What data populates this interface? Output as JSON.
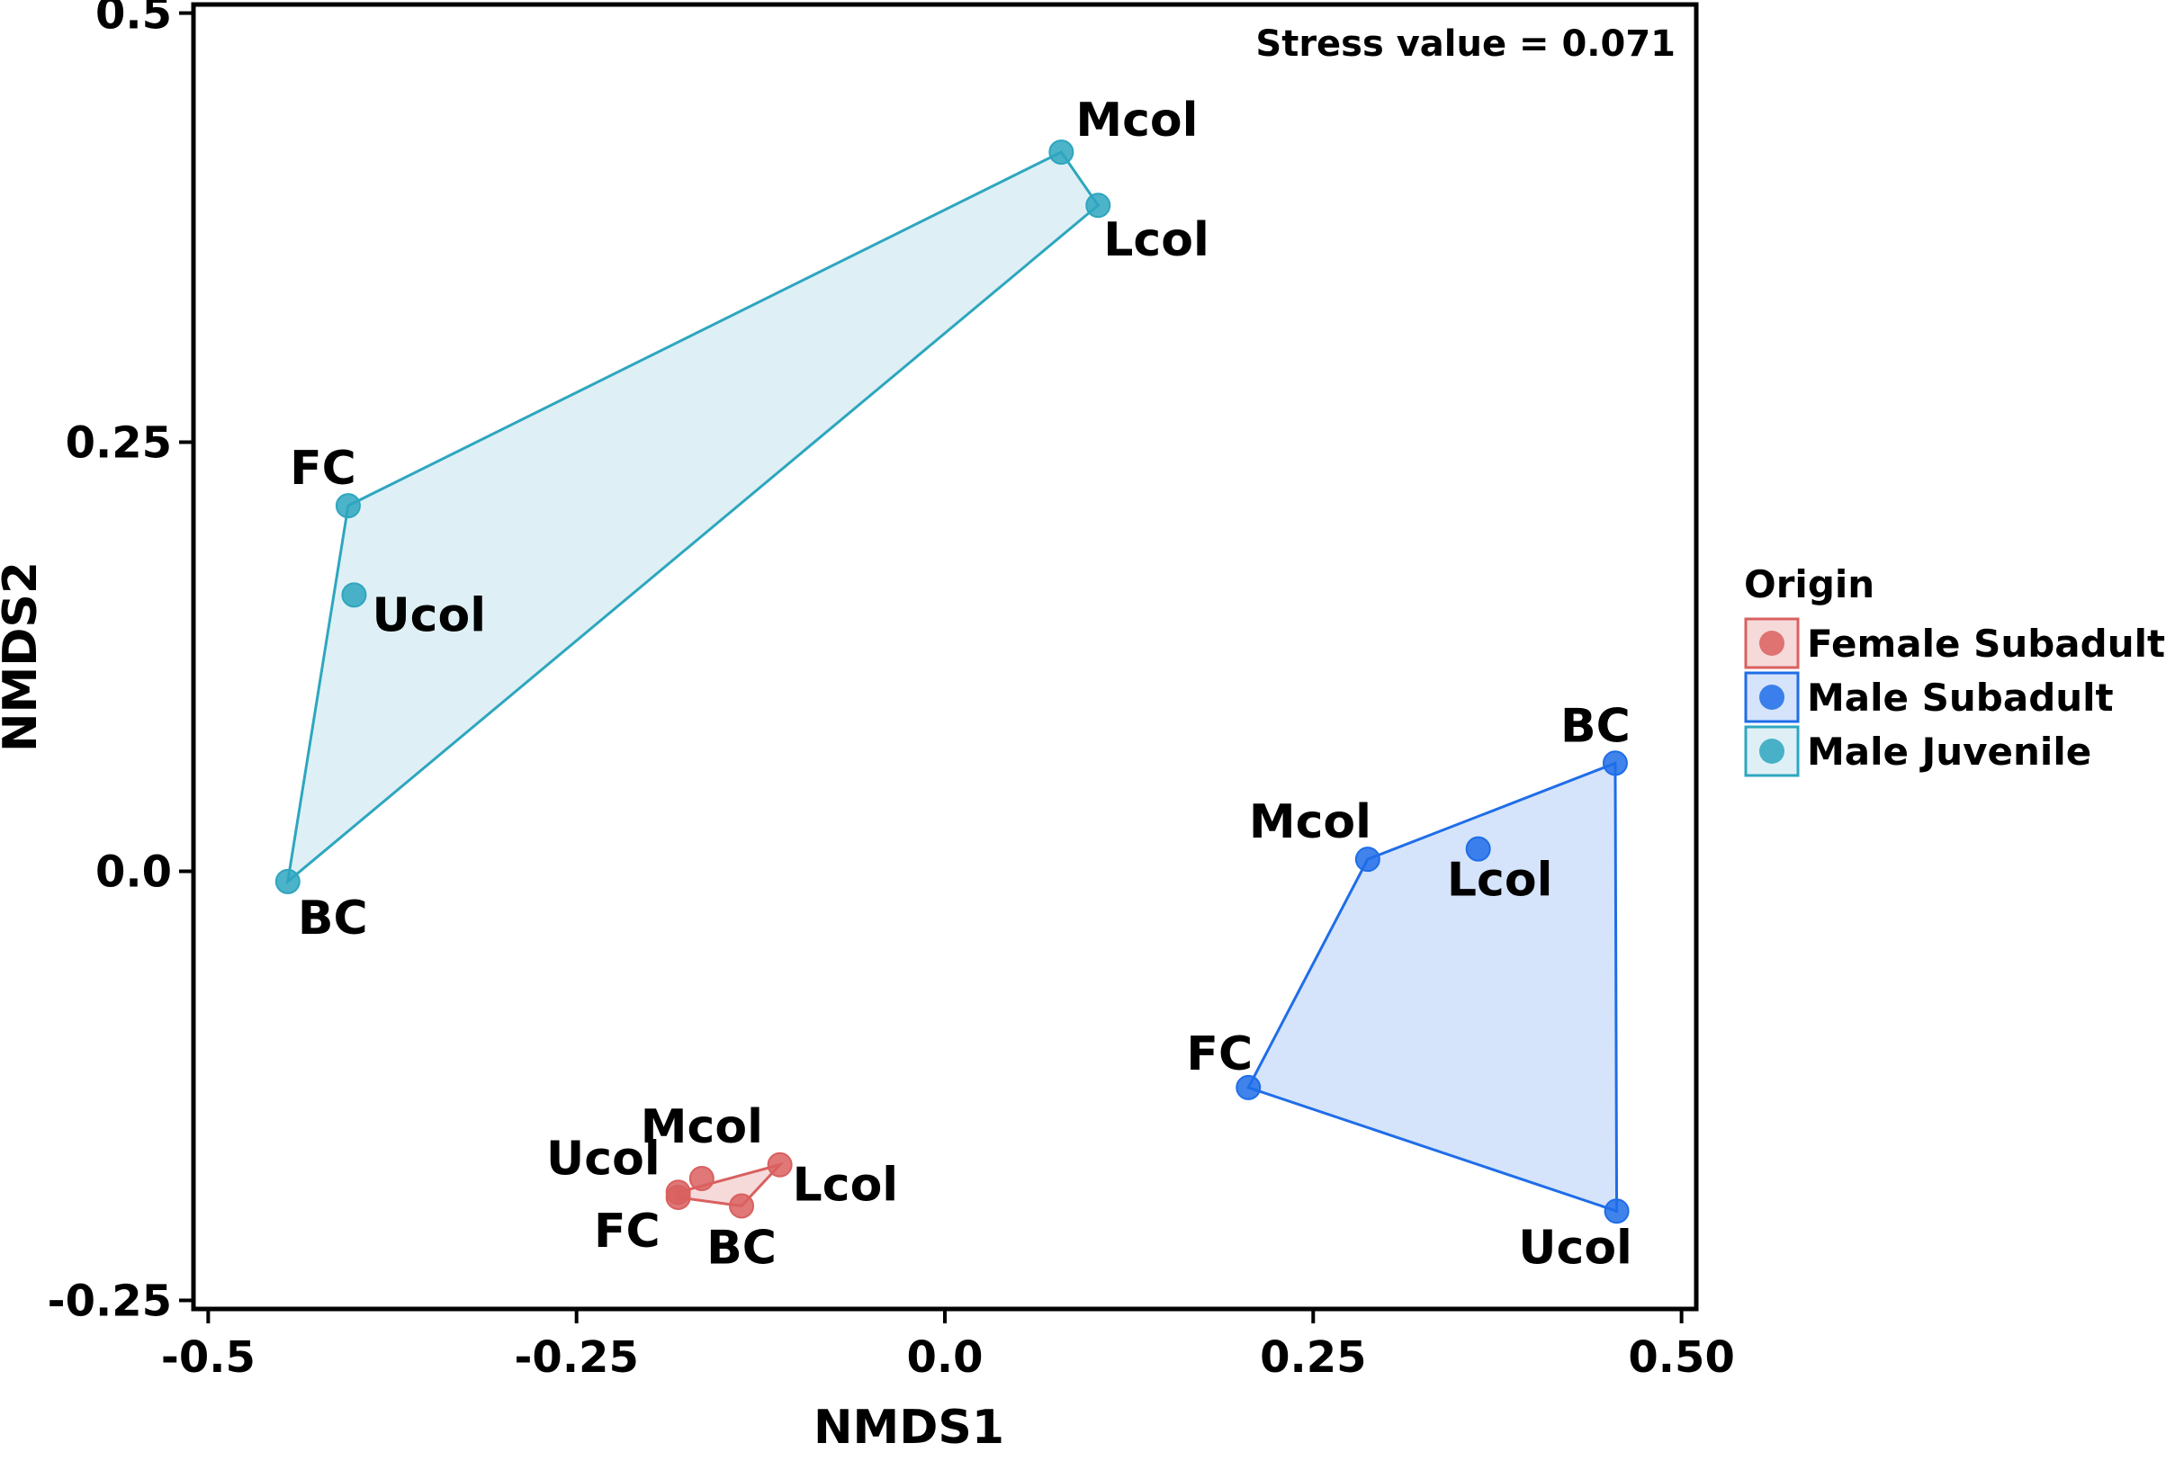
{
  "chart_data": {
    "type": "scatter",
    "xlabel": "NMDS1",
    "ylabel": "NMDS2",
    "xlim": [
      -0.51,
      0.51
    ],
    "ylim": [
      -0.255,
      0.505
    ],
    "x_ticks": [
      -0.5,
      -0.25,
      0.0,
      0.25,
      0.5
    ],
    "x_tick_labels": [
      "-0.5",
      "-0.25",
      "0.0",
      "0.25",
      "0.50"
    ],
    "y_ticks": [
      -0.25,
      0.0,
      0.25,
      0.5
    ],
    "y_tick_labels": [
      "-0.25",
      "0.0",
      "0.25",
      "0.5"
    ],
    "annotation": "Stress value = 0.071",
    "grid": false,
    "legend": {
      "title": "Origin",
      "placement": "right"
    },
    "series": [
      {
        "name": "Female Subadult",
        "color": "#d9605f",
        "fill": "#f6dada",
        "points": [
          {
            "label": "Ucol",
            "x": -0.181,
            "y": -0.187
          },
          {
            "label": "FC",
            "x": -0.181,
            "y": -0.19
          },
          {
            "label": "Mcol",
            "x": -0.165,
            "y": -0.179
          },
          {
            "label": "Lcol",
            "x": -0.112,
            "y": -0.171
          },
          {
            "label": "BC",
            "x": -0.138,
            "y": -0.195
          }
        ],
        "hull": [
          "Ucol",
          "Lcol",
          "BC",
          "FC"
        ]
      },
      {
        "name": "Male Subadult",
        "color": "#1f6de8",
        "fill": "#d5e4fa",
        "points": [
          {
            "label": "BC",
            "x": 0.455,
            "y": 0.063
          },
          {
            "label": "Mcol",
            "x": 0.287,
            "y": 0.007
          },
          {
            "label": "Lcol",
            "x": 0.362,
            "y": 0.013
          },
          {
            "label": "FC",
            "x": 0.206,
            "y": -0.126
          },
          {
            "label": "Ucol",
            "x": 0.456,
            "y": -0.198
          }
        ],
        "hull": [
          "Mcol",
          "BC",
          "Ucol",
          "FC"
        ]
      },
      {
        "name": "Male Juvenile",
        "color": "#2ea6bf",
        "fill": "#def0f5",
        "points": [
          {
            "label": "Mcol",
            "x": 0.079,
            "y": 0.419
          },
          {
            "label": "Lcol",
            "x": 0.104,
            "y": 0.388
          },
          {
            "label": "FC",
            "x": -0.405,
            "y": 0.213
          },
          {
            "label": "Ucol",
            "x": -0.401,
            "y": 0.161
          },
          {
            "label": "BC",
            "x": -0.446,
            "y": -0.006
          }
        ],
        "hull": [
          "FC",
          "Mcol",
          "Lcol",
          "BC"
        ]
      }
    ]
  }
}
